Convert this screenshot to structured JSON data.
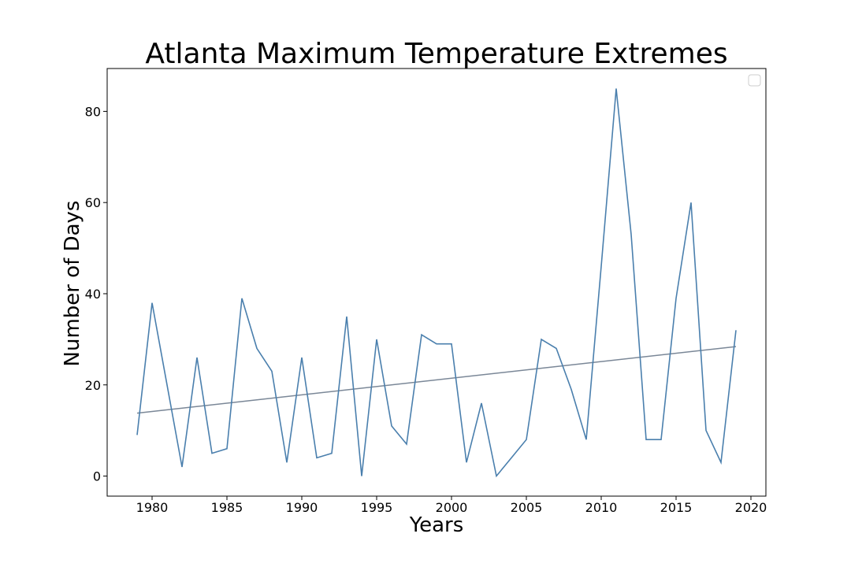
{
  "chart_data": {
    "type": "line",
    "title": "Atlanta Maximum Temperature Extremes",
    "xlabel": "Years",
    "ylabel": "Number of Days",
    "xlim": [
      1977,
      2021
    ],
    "ylim": [
      -4.4,
      89.4
    ],
    "xticks": [
      1980,
      1985,
      1990,
      1995,
      2000,
      2005,
      2010,
      2015,
      2020
    ],
    "yticks": [
      0,
      20,
      40,
      60,
      80
    ],
    "grid": false,
    "legend": {
      "placement": "top-right",
      "entries": []
    },
    "x": [
      1979,
      1980,
      1981,
      1982,
      1983,
      1984,
      1985,
      1986,
      1987,
      1988,
      1989,
      1990,
      1991,
      1992,
      1993,
      1994,
      1995,
      1996,
      1997,
      1998,
      1999,
      2000,
      2001,
      2002,
      2003,
      2004,
      2005,
      2006,
      2007,
      2008,
      2009,
      2010,
      2011,
      2012,
      2013,
      2014,
      2015,
      2016,
      2017,
      2018,
      2019
    ],
    "series": [
      {
        "color": "#4a7fad",
        "values": [
          9,
          38,
          20,
          2,
          26,
          5,
          6,
          39,
          28,
          23,
          3,
          26,
          4,
          5,
          35,
          0,
          30,
          11,
          7,
          31,
          29,
          29,
          3,
          16,
          0,
          4,
          8,
          30,
          28,
          19,
          8,
          46,
          85,
          53,
          8,
          8,
          39,
          60,
          10,
          3,
          32
        ]
      }
    ],
    "trendline": {
      "color": "#7a8797",
      "x": [
        1979,
        2019
      ],
      "y": [
        13.8,
        28.4
      ]
    }
  }
}
